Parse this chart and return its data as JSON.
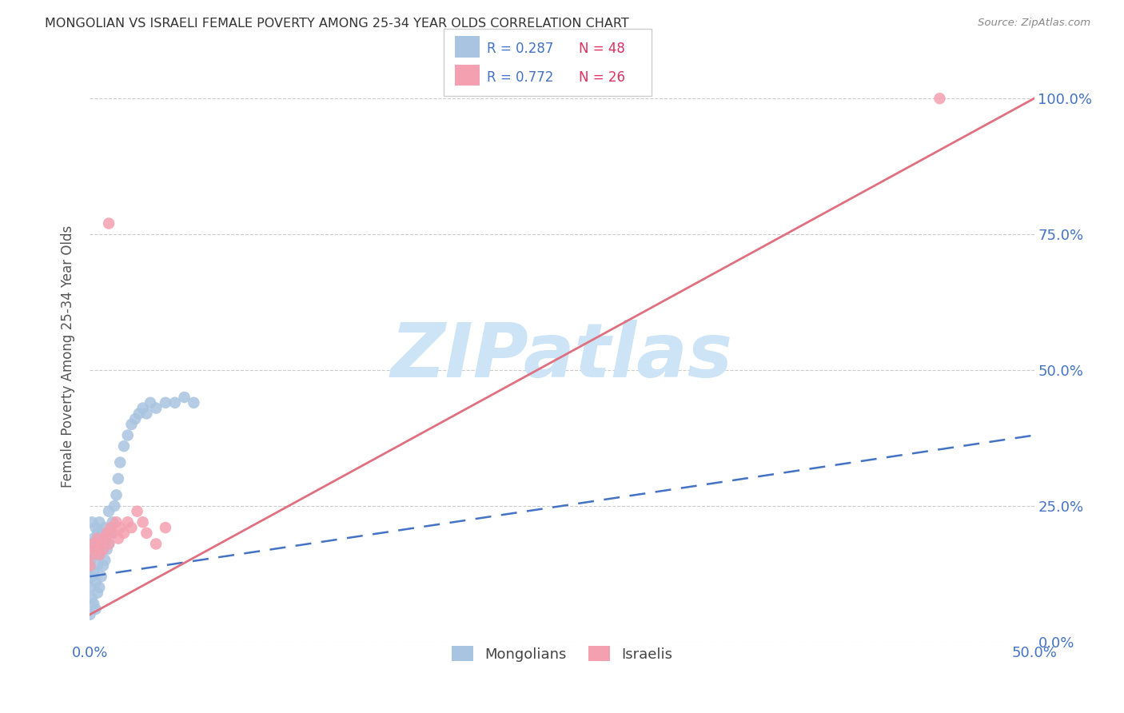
{
  "title": "MONGOLIAN VS ISRAELI FEMALE POVERTY AMONG 25-34 YEAR OLDS CORRELATION CHART",
  "source": "Source: ZipAtlas.com",
  "ylabel": "Female Poverty Among 25-34 Year Olds",
  "xlim": [
    0,
    0.5
  ],
  "ylim": [
    0,
    1.05
  ],
  "mongolian_color": "#a8c4e0",
  "israeli_color": "#f4a0b0",
  "mongolian_trendline_color": "#4472c4",
  "israeli_trendline_color": "#e07080",
  "legend_R_color": "#4472c4",
  "legend_N_color": "#e03060",
  "R_mongolian": 0.287,
  "N_mongolian": 48,
  "R_israeli": 0.772,
  "N_israeli": 26,
  "watermark": "ZIPatlas",
  "watermark_color": "#cce4f5",
  "background_color": "#ffffff",
  "mong_x": [
    0.0,
    0.0,
    0.0,
    0.001,
    0.001,
    0.001,
    0.001,
    0.002,
    0.002,
    0.002,
    0.003,
    0.003,
    0.003,
    0.003,
    0.004,
    0.004,
    0.004,
    0.005,
    0.005,
    0.005,
    0.006,
    0.006,
    0.007,
    0.007,
    0.008,
    0.008,
    0.009,
    0.01,
    0.01,
    0.011,
    0.012,
    0.013,
    0.014,
    0.015,
    0.016,
    0.018,
    0.02,
    0.022,
    0.024,
    0.026,
    0.028,
    0.03,
    0.032,
    0.035,
    0.04,
    0.045,
    0.05,
    0.055
  ],
  "mong_y": [
    0.05,
    0.1,
    0.15,
    0.08,
    0.12,
    0.18,
    0.22,
    0.07,
    0.13,
    0.19,
    0.06,
    0.11,
    0.16,
    0.21,
    0.09,
    0.14,
    0.2,
    0.1,
    0.16,
    0.22,
    0.12,
    0.18,
    0.14,
    0.2,
    0.15,
    0.21,
    0.17,
    0.18,
    0.24,
    0.2,
    0.22,
    0.25,
    0.27,
    0.3,
    0.33,
    0.36,
    0.38,
    0.4,
    0.41,
    0.42,
    0.43,
    0.42,
    0.44,
    0.43,
    0.44,
    0.44,
    0.45,
    0.44
  ],
  "isr_x": [
    0.0,
    0.001,
    0.002,
    0.003,
    0.004,
    0.005,
    0.006,
    0.007,
    0.008,
    0.009,
    0.01,
    0.011,
    0.012,
    0.014,
    0.015,
    0.016,
    0.018,
    0.02,
    0.022,
    0.025,
    0.028,
    0.03,
    0.035,
    0.04,
    0.01,
    0.45
  ],
  "isr_y": [
    0.14,
    0.16,
    0.18,
    0.17,
    0.19,
    0.16,
    0.18,
    0.17,
    0.19,
    0.2,
    0.18,
    0.21,
    0.2,
    0.22,
    0.19,
    0.21,
    0.2,
    0.22,
    0.21,
    0.24,
    0.22,
    0.2,
    0.18,
    0.21,
    0.77,
    1.0
  ],
  "mong_trend_x": [
    0.0,
    0.5
  ],
  "mong_trend_y": [
    0.12,
    0.38
  ],
  "isr_trend_x": [
    0.0,
    0.5
  ],
  "isr_trend_y": [
    0.05,
    1.0
  ]
}
